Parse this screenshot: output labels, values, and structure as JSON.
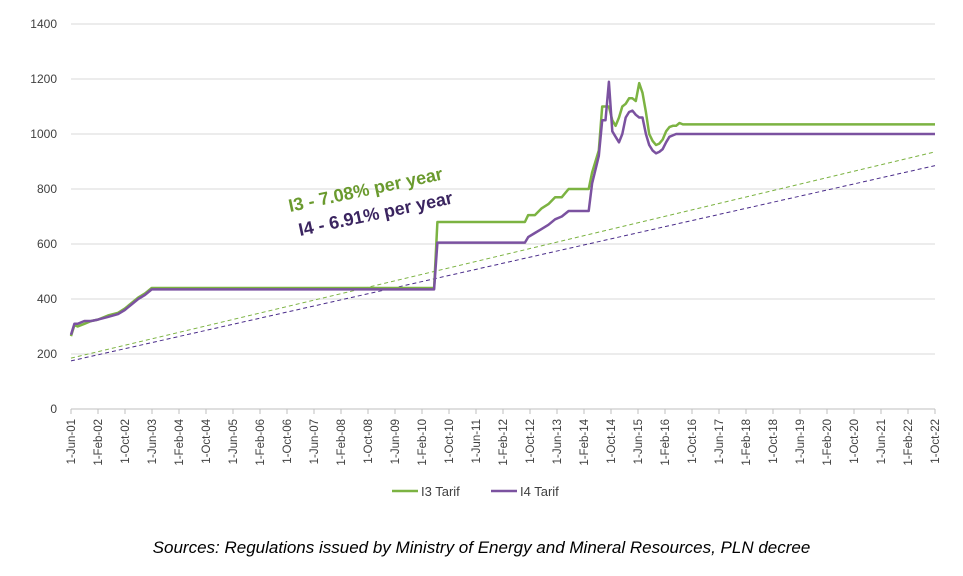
{
  "chart_data": {
    "type": "line",
    "ylim": [
      0,
      1400
    ],
    "y_ticks": [
      "0",
      "200",
      "400",
      "600",
      "800",
      "1000",
      "1200",
      "1400"
    ],
    "y_tick_values": [
      0,
      200,
      400,
      600,
      800,
      1000,
      1200,
      1400
    ],
    "x_tick_labels": [
      "1-Jun-01",
      "1-Feb-02",
      "1-Oct-02",
      "1-Jun-03",
      "1-Feb-04",
      "1-Oct-04",
      "1-Jun-05",
      "1-Feb-06",
      "1-Oct-06",
      "1-Jun-07",
      "1-Feb-08",
      "1-Oct-08",
      "1-Jun-09",
      "1-Feb-10",
      "1-Oct-10",
      "1-Jun-11",
      "1-Feb-12",
      "1-Oct-12",
      "1-Jun-13",
      "1-Feb-14",
      "1-Oct-14",
      "1-Jun-15",
      "1-Feb-16",
      "1-Oct-16",
      "1-Jun-17",
      "1-Feb-18",
      "1-Oct-18",
      "1-Jun-19",
      "1-Feb-20",
      "1-Oct-20",
      "1-Jun-21",
      "1-Feb-22",
      "1-Oct-22"
    ],
    "grid": true,
    "legend_position": "bottom",
    "series": [
      {
        "name": "I3 Tarif",
        "color": "#7cb342",
        "x": [
          "2001-06",
          "2001-07",
          "2001-08",
          "2001-10",
          "2001-12",
          "2002-02",
          "2002-05",
          "2002-08",
          "2002-10",
          "2002-12",
          "2003-02",
          "2003-04",
          "2003-06",
          "2010-06",
          "2010-07",
          "2012-09",
          "2012-10",
          "2012-12",
          "2013-02",
          "2013-04",
          "2013-06",
          "2013-08",
          "2013-10",
          "2014-04",
          "2014-05",
          "2014-07",
          "2014-08",
          "2014-09",
          "2014-10",
          "2014-11",
          "2014-12",
          "2015-01",
          "2015-02",
          "2015-03",
          "2015-04",
          "2015-05",
          "2015-06",
          "2015-07",
          "2015-08",
          "2015-09",
          "2015-10",
          "2015-11",
          "2015-12",
          "2016-01",
          "2016-02",
          "2016-03",
          "2016-04",
          "2016-05",
          "2016-06",
          "2016-07",
          "2016-08",
          "2016-09",
          "2016-10",
          "2016-11",
          "2016-12",
          "2022-11"
        ],
        "values": [
          265,
          305,
          300,
          310,
          320,
          325,
          340,
          350,
          365,
          385,
          405,
          420,
          440,
          440,
          680,
          680,
          705,
          705,
          730,
          745,
          770,
          770,
          800,
          800,
          860,
          940,
          1100,
          1100,
          1100,
          1050,
          1030,
          1060,
          1100,
          1110,
          1130,
          1130,
          1120,
          1185,
          1150,
          1080,
          1000,
          975,
          960,
          965,
          980,
          1010,
          1025,
          1030,
          1030,
          1040,
          1035,
          1035,
          1035,
          1035,
          1035,
          1035
        ]
      },
      {
        "name": "I4 Tarif",
        "color": "#7b52a0",
        "x": [
          "2001-06",
          "2001-07",
          "2001-08",
          "2001-10",
          "2001-12",
          "2002-02",
          "2002-05",
          "2002-08",
          "2002-10",
          "2002-12",
          "2003-02",
          "2003-04",
          "2003-06",
          "2010-06",
          "2010-07",
          "2012-09",
          "2012-10",
          "2012-12",
          "2013-02",
          "2013-04",
          "2013-06",
          "2013-08",
          "2013-10",
          "2014-04",
          "2014-05",
          "2014-07",
          "2014-08",
          "2014-09",
          "2014-10",
          "2014-11",
          "2014-12",
          "2015-01",
          "2015-02",
          "2015-03",
          "2015-04",
          "2015-05",
          "2015-06",
          "2015-07",
          "2015-08",
          "2015-09",
          "2015-10",
          "2015-11",
          "2015-12",
          "2016-01",
          "2016-02",
          "2016-03",
          "2016-04",
          "2016-05",
          "2016-06",
          "2016-07",
          "2016-08",
          "2016-09",
          "2016-10",
          "2016-11",
          "2016-12",
          "2022-11"
        ],
        "values": [
          270,
          310,
          310,
          320,
          320,
          325,
          335,
          345,
          360,
          380,
          400,
          415,
          435,
          435,
          605,
          605,
          625,
          640,
          655,
          670,
          690,
          700,
          720,
          720,
          820,
          920,
          1050,
          1050,
          1190,
          1010,
          990,
          970,
          1000,
          1060,
          1080,
          1085,
          1070,
          1060,
          1060,
          1000,
          960,
          940,
          930,
          935,
          945,
          970,
          990,
          995,
          1000,
          1000,
          1000,
          1000,
          1000,
          1000,
          1000,
          1000
        ]
      }
    ],
    "trendlines": [
      {
        "series": "I3 Tarif",
        "color": "#7cb342",
        "x": [
          "2001-06",
          "2022-11"
        ],
        "values": [
          185,
          935
        ]
      },
      {
        "series": "I4 Tarif",
        "color": "#4a2c8a",
        "x": [
          "2001-06",
          "2022-11"
        ],
        "values": [
          175,
          885
        ]
      }
    ],
    "annotations": [
      {
        "text": "I3 - 7.08% per year",
        "color": "#6a9a2e"
      },
      {
        "text": "I4 - 6.91% per year",
        "color": "#3b2560"
      }
    ]
  },
  "source_note": "Sources:  Regulations issued by Ministry of Energy and Mineral Resources, PLN decree"
}
